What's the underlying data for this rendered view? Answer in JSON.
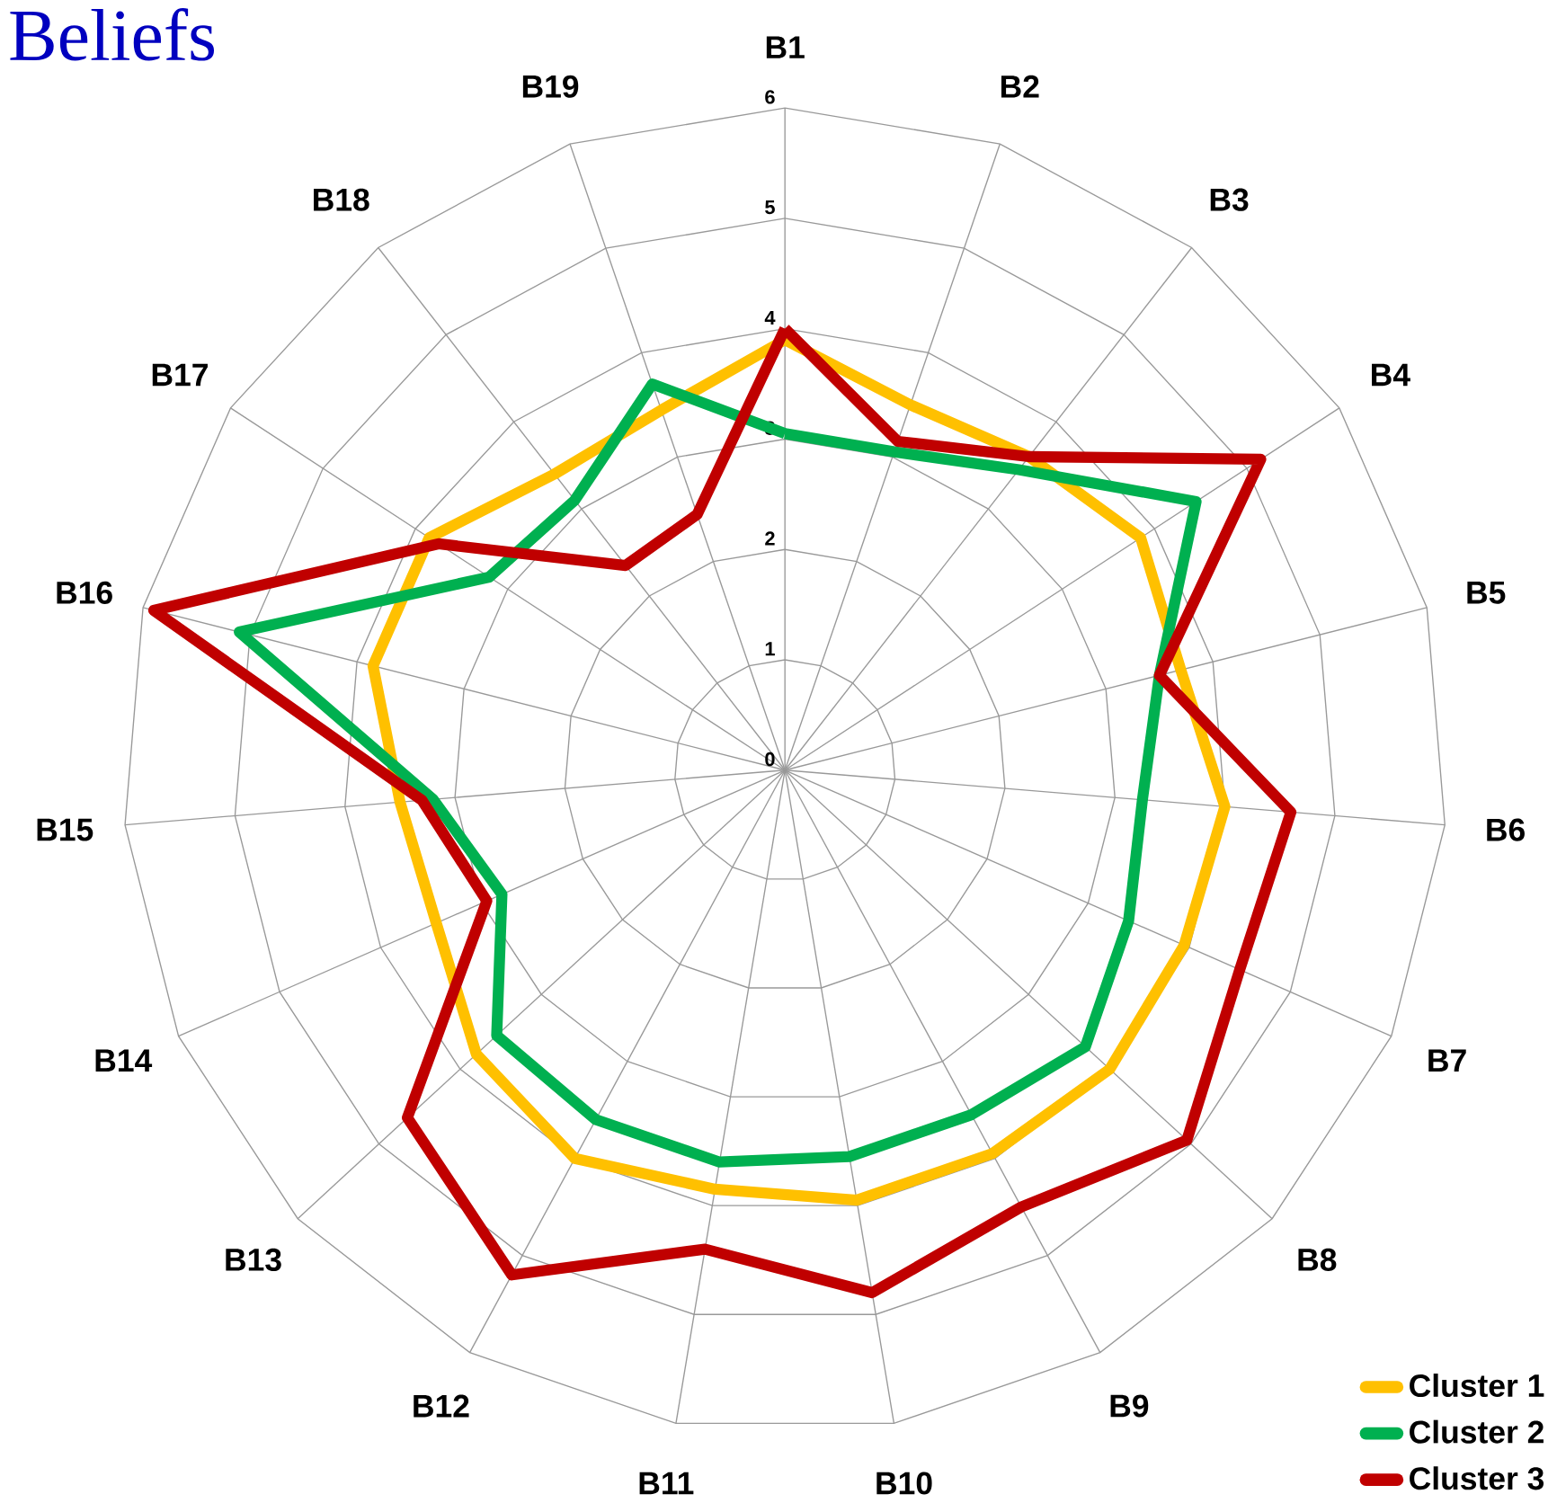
{
  "chart_data": {
    "type": "radar",
    "title": "Beliefs",
    "categories": [
      "B1",
      "B2",
      "B3",
      "B4",
      "B5",
      "B6",
      "B7",
      "B8",
      "B9",
      "B10",
      "B11",
      "B12",
      "B13",
      "B14",
      "B15",
      "B16",
      "B17",
      "B18",
      "B19"
    ],
    "ylim": [
      0,
      6
    ],
    "yticks": [
      0,
      1,
      2,
      3,
      4,
      5,
      6
    ],
    "grid": true,
    "legend": "bottom right",
    "line_style": "solid",
    "marker": "none",
    "series": [
      {
        "name": "Cluster 1",
        "color": "#ffc000",
        "values": [
          3.9,
          3.5,
          3.6,
          3.85,
          3.7,
          4.0,
          3.95,
          4.0,
          3.95,
          3.95,
          3.85,
          4.0,
          3.8,
          3.45,
          3.5,
          3.85,
          3.85,
          3.4,
          3.45
        ]
      },
      {
        "name": "Cluster 2",
        "color": "#00b050",
        "values": [
          3.05,
          3.05,
          3.45,
          4.45,
          3.5,
          3.25,
          3.4,
          3.7,
          3.55,
          3.55,
          3.6,
          3.6,
          3.55,
          2.8,
          3.2,
          5.1,
          3.2,
          3.1,
          3.7
        ]
      },
      {
        "name": "Cluster 3",
        "color": "#c00000",
        "values": [
          4.0,
          3.15,
          3.6,
          5.15,
          3.5,
          4.6,
          4.5,
          4.95,
          4.5,
          4.8,
          4.4,
          5.2,
          4.65,
          2.95,
          3.3,
          5.9,
          3.75,
          2.35,
          2.45
        ]
      }
    ]
  }
}
